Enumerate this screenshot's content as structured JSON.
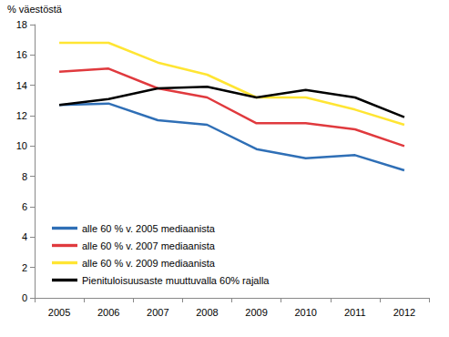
{
  "chart_data": {
    "type": "line",
    "ylabel": "% väestöstä",
    "categories": [
      "2005",
      "2006",
      "2007",
      "2008",
      "2009",
      "2010",
      "2011",
      "2012"
    ],
    "series": [
      {
        "name": "alle 60 % v. 2005 mediaanista",
        "color": "#2f6fb6",
        "values": [
          12.7,
          12.8,
          11.7,
          11.4,
          9.8,
          9.2,
          9.4,
          8.4
        ]
      },
      {
        "name": "alle 60 % v. 2007 mediaanista",
        "color": "#e03a3e",
        "values": [
          14.9,
          15.1,
          13.8,
          13.2,
          11.5,
          11.5,
          11.1,
          10.0
        ]
      },
      {
        "name": "alle 60 % v. 2009 mediaanista",
        "color": "#ffe533",
        "values": [
          16.8,
          16.8,
          15.5,
          14.7,
          13.2,
          13.2,
          12.4,
          11.4
        ]
      },
      {
        "name": "Pienituloisuusaste muuttuvalla 60% rajalla",
        "color": "#000000",
        "values": [
          12.7,
          13.1,
          13.8,
          13.9,
          13.2,
          13.7,
          13.2,
          11.9
        ]
      }
    ],
    "ylim": [
      0,
      18
    ],
    "yticks": [
      0,
      2,
      4,
      6,
      8,
      10,
      12,
      14,
      16,
      18
    ],
    "grid": false,
    "legend": "lower left"
  }
}
